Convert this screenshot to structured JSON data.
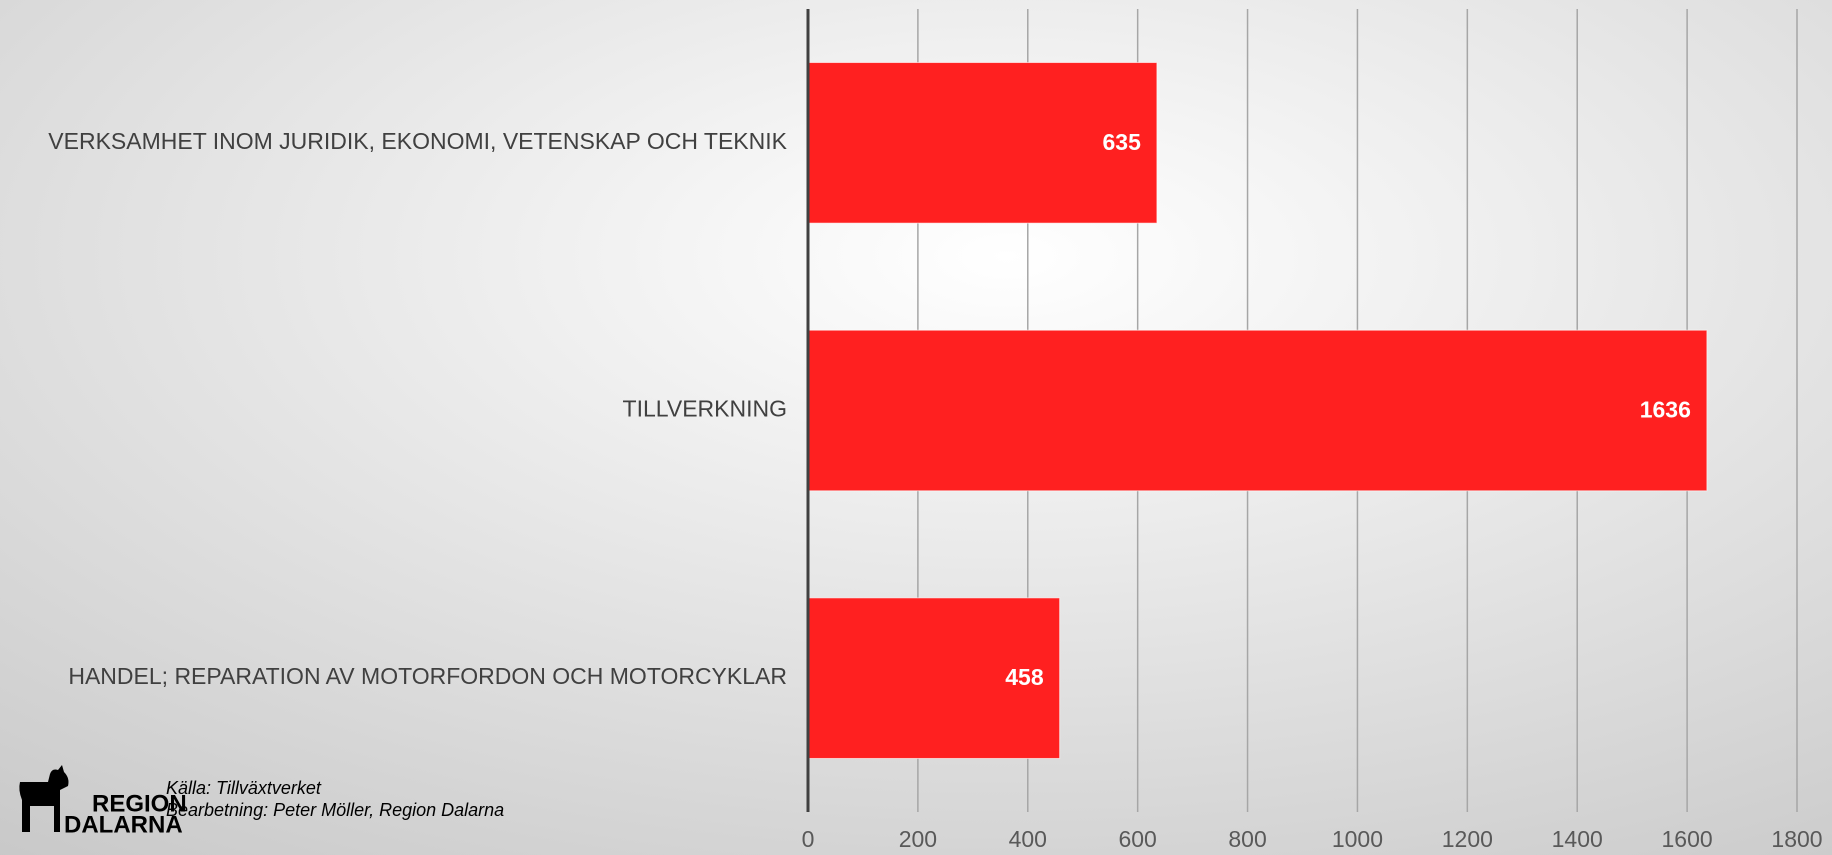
{
  "chart_data": {
    "type": "bar",
    "orientation": "horizontal",
    "categories": [
      "VERKSAMHET INOM JURIDIK, EKONOMI, VETENSKAP OCH TEKNIK",
      "TILLVERKNING",
      "HANDEL; REPARATION AV MOTORFORDON OCH MOTORCYKLAR"
    ],
    "values": [
      635,
      1636,
      458
    ],
    "color": "#ff2020",
    "xlim": [
      0,
      1800
    ],
    "xticks": [
      0,
      200,
      400,
      600,
      800,
      1000,
      1200,
      1400,
      1600,
      1800
    ],
    "grid": true,
    "source": "Källa: Tillväxtverket",
    "processing": "Bearbetning: Peter Möller, Region Dalarna",
    "logo": [
      "REGION",
      "DALARNA"
    ]
  }
}
